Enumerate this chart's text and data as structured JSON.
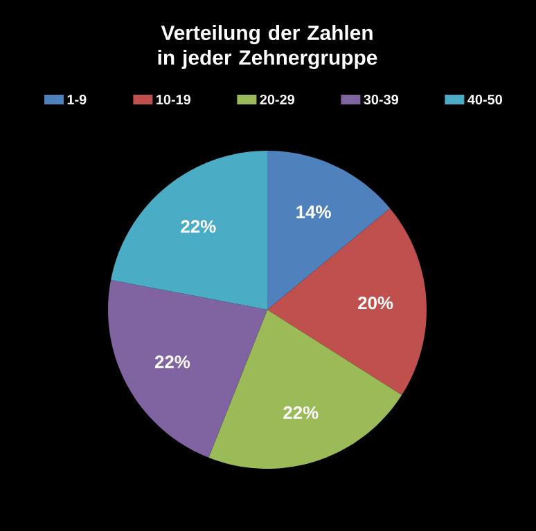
{
  "chart_data": {
    "type": "pie",
    "title": "Verteilung der Zahlen in jeder Zehnergruppe",
    "categories": [
      "1-9",
      "10-19",
      "20-29",
      "30-39",
      "40-50"
    ],
    "values": [
      14,
      20,
      22,
      22,
      22
    ],
    "value_labels": [
      "14%",
      "20%",
      "22%",
      "22%",
      "22%"
    ],
    "colors": [
      "#4f81bd",
      "#c0504d",
      "#9bbb59",
      "#8064a2",
      "#4bacc6"
    ],
    "legend": "top"
  }
}
